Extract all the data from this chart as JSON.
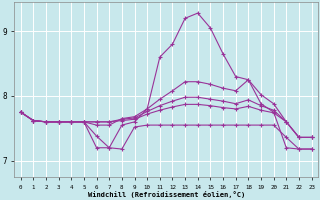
{
  "xlabel": "Windchill (Refroidissement éolien,°C)",
  "background_color": "#c8e8ec",
  "line_color": "#993399",
  "grid_color": "#ffffff",
  "xlim": [
    -0.5,
    23.5
  ],
  "ylim": [
    6.75,
    9.45
  ],
  "yticks": [
    7,
    8,
    9
  ],
  "xticks": [
    0,
    1,
    2,
    3,
    4,
    5,
    6,
    7,
    8,
    9,
    10,
    11,
    12,
    13,
    14,
    15,
    16,
    17,
    18,
    19,
    20,
    21,
    22,
    23
  ],
  "lines": [
    {
      "x": [
        0,
        1,
        2,
        3,
        4,
        5,
        6,
        7,
        8,
        9,
        10,
        11,
        12,
        13,
        14,
        15,
        16,
        17,
        18,
        19,
        20,
        21,
        22,
        23
      ],
      "y": [
        7.75,
        7.62,
        7.6,
        7.6,
        7.6,
        7.6,
        7.2,
        7.2,
        7.55,
        7.6,
        7.8,
        8.6,
        8.8,
        9.2,
        9.28,
        9.05,
        8.65,
        8.3,
        8.25,
        7.88,
        7.75,
        7.2,
        7.18,
        7.18
      ]
    },
    {
      "x": [
        0,
        1,
        2,
        3,
        4,
        5,
        6,
        7,
        8,
        9,
        10,
        11,
        12,
        13,
        14,
        15,
        16,
        17,
        18,
        19,
        20,
        21,
        22,
        23
      ],
      "y": [
        7.75,
        7.62,
        7.6,
        7.6,
        7.6,
        7.6,
        7.55,
        7.55,
        7.65,
        7.68,
        7.8,
        7.95,
        8.08,
        8.22,
        8.22,
        8.18,
        8.12,
        8.08,
        8.25,
        8.02,
        7.88,
        7.6,
        7.36,
        7.36
      ]
    },
    {
      "x": [
        0,
        1,
        2,
        3,
        4,
        5,
        6,
        7,
        8,
        9,
        10,
        11,
        12,
        13,
        14,
        15,
        16,
        17,
        18,
        19,
        20,
        21,
        22,
        23
      ],
      "y": [
        7.75,
        7.62,
        7.6,
        7.6,
        7.6,
        7.6,
        7.6,
        7.6,
        7.64,
        7.66,
        7.76,
        7.85,
        7.92,
        7.98,
        7.98,
        7.95,
        7.92,
        7.88,
        7.94,
        7.85,
        7.78,
        7.6,
        7.36,
        7.36
      ]
    },
    {
      "x": [
        0,
        1,
        2,
        3,
        4,
        5,
        6,
        7,
        8,
        9,
        10,
        11,
        12,
        13,
        14,
        15,
        16,
        17,
        18,
        19,
        20,
        21,
        22,
        23
      ],
      "y": [
        7.75,
        7.62,
        7.6,
        7.6,
        7.6,
        7.6,
        7.6,
        7.6,
        7.62,
        7.64,
        7.72,
        7.78,
        7.83,
        7.87,
        7.87,
        7.85,
        7.82,
        7.8,
        7.84,
        7.78,
        7.74,
        7.6,
        7.36,
        7.36
      ]
    },
    {
      "x": [
        0,
        1,
        2,
        3,
        4,
        5,
        6,
        7,
        8,
        9,
        10,
        11,
        12,
        13,
        14,
        15,
        16,
        17,
        18,
        19,
        20,
        21,
        22,
        23
      ],
      "y": [
        7.75,
        7.62,
        7.6,
        7.6,
        7.6,
        7.6,
        7.38,
        7.2,
        7.18,
        7.52,
        7.55,
        7.55,
        7.55,
        7.55,
        7.55,
        7.55,
        7.55,
        7.55,
        7.55,
        7.55,
        7.55,
        7.36,
        7.18,
        7.18
      ]
    }
  ]
}
